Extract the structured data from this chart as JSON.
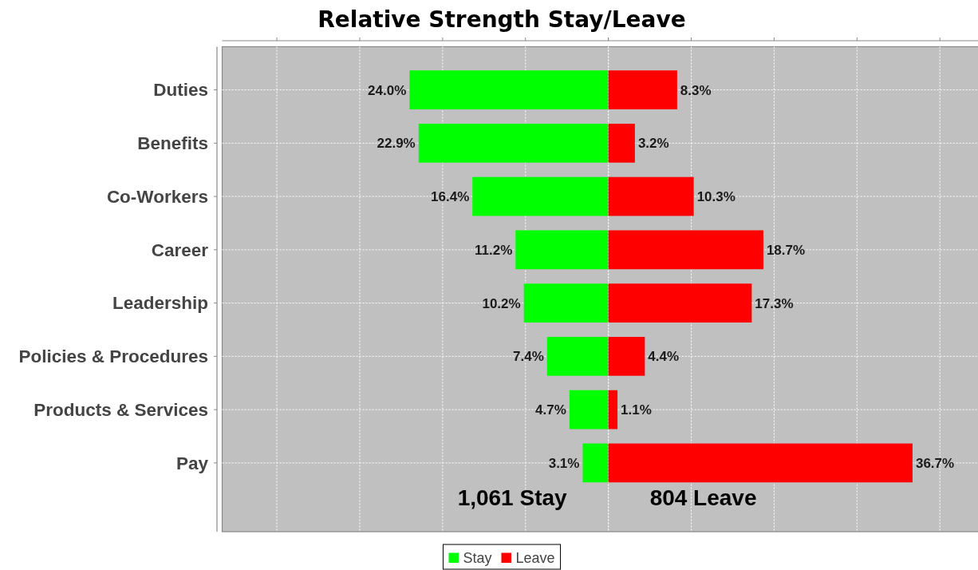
{
  "chart_data": [
    {
      "type": "bar",
      "orientation": "horizontal",
      "title": "Relative Strength Stay/Leave",
      "categories": [
        "Duties",
        "Benefits",
        "Co-Workers",
        "Career",
        "Leadership",
        "Policies & Procedures",
        "Products & Services",
        "Pay"
      ],
      "series": [
        {
          "name": "Stay",
          "color": "#00ff00",
          "values": [
            24.0,
            22.9,
            16.4,
            11.2,
            10.2,
            7.4,
            4.7,
            3.1
          ],
          "value_labels": [
            "24.0%",
            "22.9%",
            "16.4%",
            "11.2%",
            "10.2%",
            "7.4%",
            "4.7%",
            "3.1%"
          ]
        }
      ],
      "xlim": [
        46.6,
        0
      ],
      "xticks": [
        40,
        30,
        20,
        10,
        0
      ],
      "tick_labels": "y",
      "grid": true,
      "legend": "bottom",
      "annotations": [
        "1,061 Stay"
      ]
    },
    {
      "type": "bar",
      "orientation": "horizontal",
      "categories": [
        null,
        null,
        null,
        null,
        null,
        null,
        null,
        null
      ],
      "series": [
        {
          "name": "Leave",
          "color": "#ff0000",
          "values": [
            8.3,
            3.2,
            10.3,
            18.7,
            17.3,
            4.4,
            1.1,
            36.7
          ],
          "value_labels": [
            "8.3%",
            "3.2%",
            "10.3%",
            "18.7%",
            "17.3%",
            "4.4%",
            "1.1%",
            "36.7%"
          ]
        }
      ],
      "xlim": [
        0,
        44.6
      ],
      "xticks": [
        0,
        10,
        20,
        30,
        40
      ],
      "tick_labels": false,
      "grid": true,
      "legend": "bottom",
      "annotations": [
        "804 Leave"
      ]
    }
  ]
}
